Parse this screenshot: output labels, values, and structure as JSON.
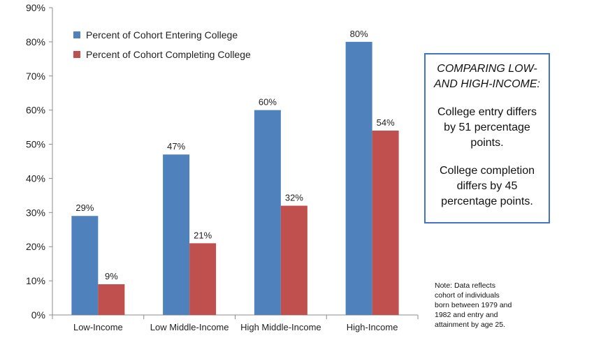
{
  "chart_data": {
    "type": "bar",
    "categories": [
      "Low-Income",
      "Low Middle-Income",
      "High Middle-Income",
      "High-Income"
    ],
    "series": [
      {
        "name": "Percent of Cohort Entering College",
        "values": [
          29,
          47,
          60,
          80
        ],
        "color": "#4f81bd"
      },
      {
        "name": "Percent of Cohort Completing College",
        "values": [
          9,
          21,
          32,
          54
        ],
        "color": "#c0504d"
      }
    ],
    "data_labels": [
      [
        "29%",
        "47%",
        "60%",
        "80%"
      ],
      [
        "9%",
        "21%",
        "32%",
        "54%"
      ]
    ],
    "ylim": [
      0,
      90
    ],
    "yticks": [
      "0%",
      "10%",
      "20%",
      "30%",
      "40%",
      "50%",
      "60%",
      "70%",
      "80%",
      "90%"
    ],
    "grid": false,
    "legend_position": "top-left"
  },
  "callout": {
    "heading_line1": "COMPARING LOW-",
    "heading_line2": "AND HIGH-INCOME:",
    "entry_line1": "College entry differs",
    "entry_line2": "by 51 percentage",
    "entry_line3": "points.",
    "completion_line1": "College completion",
    "completion_line2": "differs by 45",
    "completion_line3": "percentage points."
  },
  "note": {
    "line1": "Note: Data reflects",
    "line2": "cohort of individuals",
    "line3": "born between 1979 and",
    "line4": "1982 and entry and",
    "line5": "attainment by age 25."
  }
}
